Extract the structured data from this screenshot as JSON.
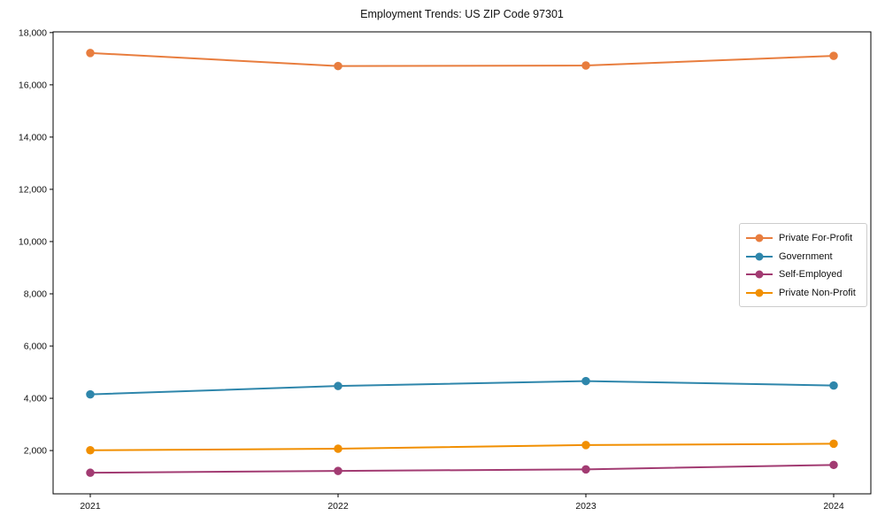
{
  "page": {
    "background": "#ffffff",
    "kind": "static line chart"
  },
  "chart_data": {
    "type": "line",
    "title": "Employment Trends: US ZIP Code 97301",
    "x": [
      2021,
      2022,
      2023,
      2024
    ],
    "x_tick_labels": [
      "2021",
      "2022",
      "2023",
      "2024"
    ],
    "series": [
      {
        "name": "Private For-Profit",
        "color": "#e87d3e",
        "values": [
          17220,
          16720,
          16740,
          17110
        ]
      },
      {
        "name": "Government",
        "color": "#2e86ab",
        "values": [
          4150,
          4470,
          4660,
          4490
        ]
      },
      {
        "name": "Self-Employed",
        "color": "#a23b72",
        "values": [
          1150,
          1220,
          1280,
          1450
        ]
      },
      {
        "name": "Private Non-Profit",
        "color": "#f18f01",
        "values": [
          2010,
          2070,
          2210,
          2260
        ]
      }
    ],
    "xlabel": "",
    "ylabel": "",
    "xlim": [
      2020.85,
      2024.15
    ],
    "ylim": [
      343,
      18028
    ],
    "yticks": [
      2000,
      4000,
      6000,
      8000,
      10000,
      12000,
      14000,
      16000,
      18000
    ],
    "ytick_labels": [
      "2,000",
      "4,000",
      "6,000",
      "8,000",
      "10,000",
      "12,000",
      "14,000",
      "16,000",
      "18,000"
    ],
    "grid": false,
    "legend_position": "center right",
    "marker": "circle",
    "line_width": 2,
    "marker_diameter": 9.5,
    "axis_color": "#000000",
    "text_color": "#111111"
  }
}
